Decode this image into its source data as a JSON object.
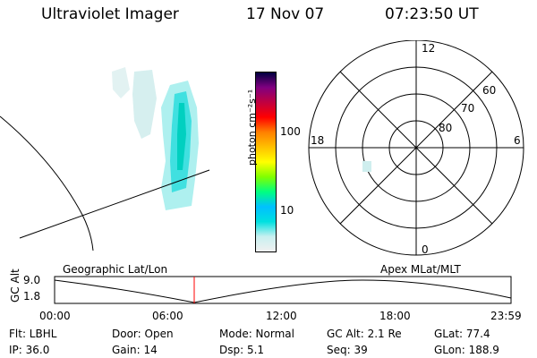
{
  "header": {
    "instrument": "Ultraviolet Imager",
    "date": "17 Nov 07",
    "time": "07:23:50 UT"
  },
  "colorbar": {
    "unit_label": "photon cm⁻²s⁻¹",
    "ticks": [
      "100",
      "10"
    ],
    "colors": [
      "#f0f0f0",
      "#c8f0f0",
      "#00e0e0",
      "#00c0ff",
      "#00ff80",
      "#80ff00",
      "#ffff00",
      "#ffc000",
      "#ff8000",
      "#ff0000",
      "#c00040",
      "#800080",
      "#000040"
    ]
  },
  "polar": {
    "labels": {
      "top": "12",
      "bottom": "0",
      "left": "18",
      "right": "6"
    },
    "rings": [
      "60",
      "70",
      "80"
    ]
  },
  "projection_labels": {
    "left": "Geographic Lat/Lon",
    "right": "Apex MLat/MLT"
  },
  "alt_plot": {
    "axis_title": "GC Alt",
    "ytick_top": "9.0",
    "ytick_bottom": "1.8",
    "xticks": [
      "00:00",
      "06:00",
      "12:00",
      "18:00",
      "23:59"
    ],
    "marker_time": "07:23"
  },
  "info": {
    "filter": "Flt: LBHL",
    "ip": "IP: 36.0",
    "door": "Door: Open",
    "gain": "Gain: 14",
    "mode": "Mode: Normal",
    "dsp": "Dsp:    5.1",
    "gcalt": "GC Alt: 2.1 Re",
    "seq": "Seq: 39",
    "glat": "GLat:   77.4",
    "glon": "GLon: 188.9"
  }
}
